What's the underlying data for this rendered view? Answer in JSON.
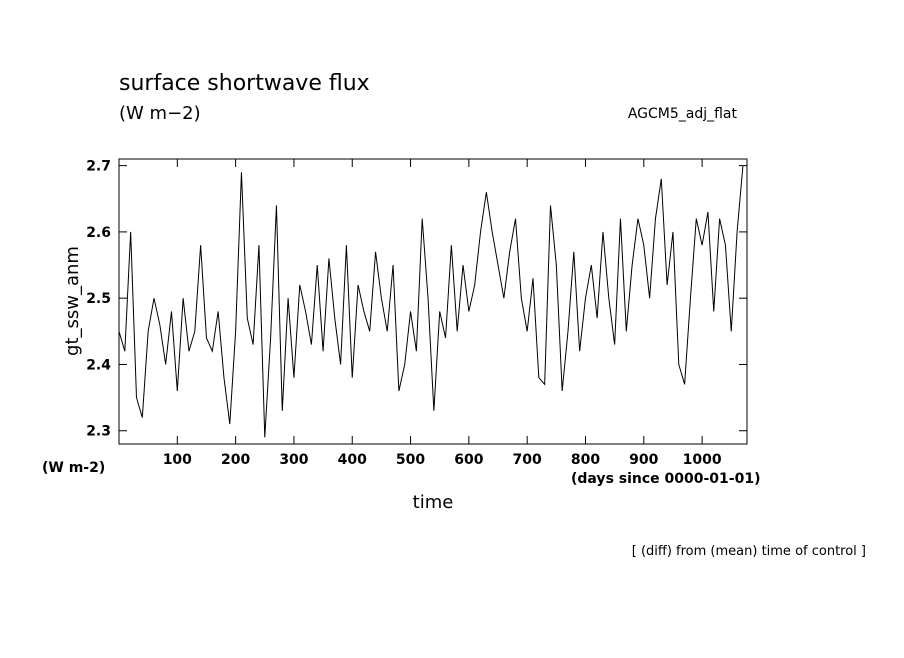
{
  "chart_data": {
    "type": "line",
    "title": "surface shortwave flux",
    "subtitle": "(W m−2)",
    "annotation": "AGCM5_adj_flat",
    "ylabel": "gt_ssw_anm",
    "yunit": "(W m-2)",
    "xlabel": "time",
    "xunit": "(days since 0000-01-01)",
    "footnote": "[ (diff) from (mean) time of control ]",
    "xlim": [
      0,
      1077
    ],
    "ylim": [
      2.28,
      2.71
    ],
    "xticks": [
      100,
      200,
      300,
      400,
      500,
      600,
      700,
      800,
      900,
      1000
    ],
    "yticks": [
      2.3,
      2.4,
      2.5,
      2.6,
      2.7
    ],
    "x": [
      0,
      10,
      20,
      30,
      40,
      50,
      60,
      70,
      80,
      90,
      100,
      110,
      120,
      130,
      140,
      150,
      160,
      170,
      180,
      190,
      200,
      210,
      220,
      230,
      240,
      250,
      260,
      270,
      280,
      290,
      300,
      310,
      320,
      330,
      340,
      350,
      360,
      370,
      380,
      390,
      400,
      410,
      420,
      430,
      440,
      450,
      460,
      470,
      480,
      490,
      500,
      510,
      520,
      530,
      540,
      550,
      560,
      570,
      580,
      590,
      600,
      610,
      620,
      630,
      640,
      650,
      660,
      670,
      680,
      690,
      700,
      710,
      720,
      730,
      740,
      750,
      760,
      770,
      780,
      790,
      800,
      810,
      820,
      830,
      840,
      850,
      860,
      870,
      880,
      890,
      900,
      910,
      920,
      930,
      940,
      950,
      960,
      970,
      980,
      990,
      1000,
      1010,
      1020,
      1030,
      1040,
      1050,
      1060,
      1070
    ],
    "series": [
      {
        "color": "#000000",
        "values": [
          2.45,
          2.42,
          2.6,
          2.35,
          2.32,
          2.45,
          2.5,
          2.46,
          2.4,
          2.48,
          2.36,
          2.5,
          2.42,
          2.45,
          2.58,
          2.44,
          2.42,
          2.48,
          2.38,
          2.31,
          2.45,
          2.69,
          2.47,
          2.43,
          2.58,
          2.29,
          2.44,
          2.64,
          2.33,
          2.5,
          2.38,
          2.52,
          2.48,
          2.43,
          2.55,
          2.42,
          2.56,
          2.47,
          2.4,
          2.58,
          2.38,
          2.52,
          2.48,
          2.45,
          2.57,
          2.5,
          2.45,
          2.55,
          2.36,
          2.4,
          2.48,
          2.42,
          2.62,
          2.5,
          2.33,
          2.48,
          2.44,
          2.58,
          2.45,
          2.55,
          2.48,
          2.52,
          2.6,
          2.66,
          2.6,
          2.55,
          2.5,
          2.57,
          2.62,
          2.5,
          2.45,
          2.53,
          2.38,
          2.37,
          2.64,
          2.55,
          2.36,
          2.45,
          2.57,
          2.42,
          2.5,
          2.55,
          2.47,
          2.6,
          2.5,
          2.43,
          2.62,
          2.45,
          2.55,
          2.62,
          2.58,
          2.5,
          2.62,
          2.68,
          2.52,
          2.6,
          2.4,
          2.37,
          2.5,
          2.62,
          2.58,
          2.63,
          2.48,
          2.62,
          2.58,
          2.45,
          2.6,
          2.7
        ]
      }
    ]
  }
}
